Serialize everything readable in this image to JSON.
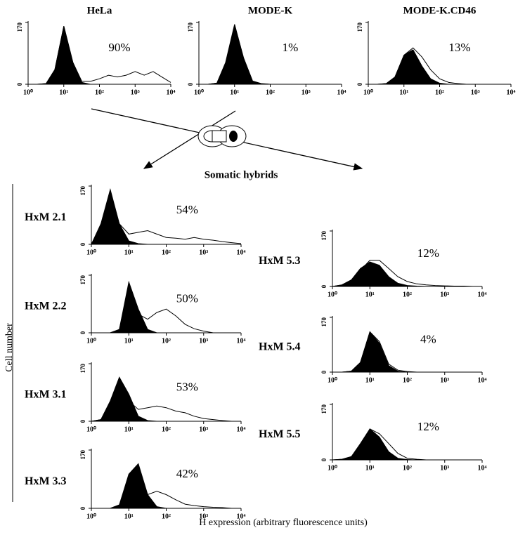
{
  "figure": {
    "center_label": "Somatic hybrids",
    "y_label": "Cell number",
    "x_label": "H expression (arbitrary fluorescence units)"
  },
  "chart_data": [
    {
      "type": "area",
      "title": "HeLa",
      "annotation": "90%",
      "log_x": true,
      "x": [
        1,
        1.8,
        3.2,
        5.6,
        10,
        18,
        32,
        56,
        100,
        180,
        320,
        560,
        1000,
        1800,
        3200,
        5600,
        10000
      ],
      "xlim": [
        1,
        10000
      ],
      "xticks": [
        {
          "value": 1,
          "label": "10⁰"
        },
        {
          "value": 10,
          "label": "10¹"
        },
        {
          "value": 100,
          "label": "10²"
        },
        {
          "value": 1000,
          "label": "10³"
        },
        {
          "value": 10000,
          "label": "10⁴"
        }
      ],
      "ylim": [
        0,
        170
      ],
      "yticks": [
        0,
        170
      ],
      "series": [
        {
          "color": "#000000",
          "fill": true,
          "values": [
            0,
            0,
            2,
            40,
            160,
            60,
            5,
            0,
            0,
            0,
            0,
            0,
            0,
            0,
            0,
            0,
            0
          ]
        },
        {
          "color": "#000000",
          "fill": false,
          "values": [
            0,
            0,
            2,
            40,
            160,
            60,
            8,
            8,
            15,
            25,
            20,
            25,
            35,
            25,
            35,
            20,
            5
          ]
        }
      ]
    },
    {
      "type": "area",
      "title": "MODE-K",
      "annotation": "1%",
      "log_x": true,
      "x": [
        1,
        1.8,
        3.2,
        5.6,
        10,
        18,
        32,
        56,
        100,
        180,
        320,
        560,
        1000,
        1800,
        3200,
        5600,
        10000
      ],
      "xlim": [
        1,
        10000
      ],
      "xticks": [
        {
          "value": 1,
          "label": "10⁰"
        },
        {
          "value": 10,
          "label": "10¹"
        },
        {
          "value": 100,
          "label": "10²"
        },
        {
          "value": 1000,
          "label": "10³"
        },
        {
          "value": 10000,
          "label": "10⁴"
        }
      ],
      "ylim": [
        0,
        170
      ],
      "yticks": [
        0,
        170
      ],
      "series": [
        {
          "color": "#000000",
          "fill": true,
          "values": [
            0,
            0,
            3,
            60,
            165,
            70,
            8,
            1,
            0,
            0,
            0,
            0,
            0,
            0,
            0,
            0,
            0
          ]
        },
        {
          "color": "#000000",
          "fill": false,
          "values": [
            0,
            0,
            3,
            58,
            163,
            72,
            9,
            2,
            0,
            0,
            0,
            0,
            0,
            0,
            0,
            0,
            0
          ]
        }
      ]
    },
    {
      "type": "area",
      "title": "MODE-K.CD46",
      "annotation": "13%",
      "log_x": true,
      "x": [
        1,
        1.8,
        3.2,
        5.6,
        10,
        18,
        32,
        56,
        100,
        180,
        320,
        560,
        1000,
        1800,
        3200,
        5600,
        10000
      ],
      "xlim": [
        1,
        10000
      ],
      "xticks": [
        {
          "value": 1,
          "label": "10⁰"
        },
        {
          "value": 10,
          "label": "10¹"
        },
        {
          "value": 100,
          "label": "10²"
        },
        {
          "value": 1000,
          "label": "10³"
        },
        {
          "value": 10000,
          "label": "10⁴"
        }
      ],
      "ylim": [
        0,
        170
      ],
      "yticks": [
        0,
        170
      ],
      "series": [
        {
          "color": "#000000",
          "fill": true,
          "values": [
            0,
            0,
            2,
            20,
            80,
            95,
            50,
            15,
            3,
            0,
            0,
            0,
            0,
            0,
            0,
            0,
            0
          ]
        },
        {
          "color": "#000000",
          "fill": false,
          "values": [
            0,
            0,
            2,
            20,
            80,
            100,
            75,
            40,
            15,
            5,
            2,
            0,
            0,
            0,
            0,
            0,
            0
          ]
        }
      ]
    },
    {
      "type": "area",
      "title": "HxM 2.1",
      "annotation": "54%",
      "log_x": true,
      "x": [
        1,
        1.8,
        3.2,
        5.6,
        10,
        18,
        32,
        56,
        100,
        180,
        320,
        560,
        1000,
        1800,
        3200,
        5600,
        10000
      ],
      "xlim": [
        1,
        10000
      ],
      "xticks": [
        {
          "value": 1,
          "label": "10⁰"
        },
        {
          "value": 10,
          "label": "10¹"
        },
        {
          "value": 100,
          "label": "10²"
        },
        {
          "value": 1000,
          "label": "10³"
        },
        {
          "value": 10000,
          "label": "10⁴"
        }
      ],
      "ylim": [
        0,
        170
      ],
      "yticks": [
        0,
        170
      ],
      "series": [
        {
          "color": "#000000",
          "fill": true,
          "values": [
            0,
            60,
            160,
            60,
            10,
            2,
            0,
            0,
            0,
            0,
            0,
            0,
            0,
            0,
            0,
            0,
            0
          ]
        },
        {
          "color": "#000000",
          "fill": false,
          "values": [
            0,
            55,
            150,
            60,
            30,
            35,
            40,
            30,
            20,
            18,
            15,
            20,
            15,
            12,
            8,
            5,
            2
          ]
        }
      ]
    },
    {
      "type": "area",
      "title": "HxM 2.2",
      "annotation": "50%",
      "log_x": true,
      "x": [
        1,
        1.8,
        3.2,
        5.6,
        10,
        18,
        32,
        56,
        100,
        180,
        320,
        560,
        1000,
        1800,
        3200,
        5600,
        10000
      ],
      "xlim": [
        1,
        10000
      ],
      "xticks": [
        {
          "value": 1,
          "label": "10⁰"
        },
        {
          "value": 10,
          "label": "10¹"
        },
        {
          "value": 100,
          "label": "10²"
        },
        {
          "value": 1000,
          "label": "10³"
        },
        {
          "value": 10000,
          "label": "10⁴"
        }
      ],
      "ylim": [
        0,
        170
      ],
      "yticks": [
        0,
        170
      ],
      "series": [
        {
          "color": "#000000",
          "fill": true,
          "values": [
            0,
            0,
            0,
            10,
            150,
            70,
            10,
            0,
            0,
            0,
            0,
            0,
            0,
            0,
            0,
            0,
            0
          ]
        },
        {
          "color": "#000000",
          "fill": false,
          "values": [
            0,
            0,
            0,
            10,
            140,
            55,
            40,
            60,
            70,
            50,
            25,
            12,
            5,
            0,
            0,
            0,
            0
          ]
        }
      ]
    },
    {
      "type": "area",
      "title": "HxM 3.1",
      "annotation": "53%",
      "log_x": true,
      "x": [
        1,
        1.8,
        3.2,
        5.6,
        10,
        18,
        32,
        56,
        100,
        180,
        320,
        560,
        1000,
        1800,
        3200,
        5600,
        10000
      ],
      "xlim": [
        1,
        10000
      ],
      "xticks": [
        {
          "value": 1,
          "label": "10⁰"
        },
        {
          "value": 10,
          "label": "10¹"
        },
        {
          "value": 100,
          "label": "10²"
        },
        {
          "value": 1000,
          "label": "10³"
        },
        {
          "value": 10000,
          "label": "10⁴"
        }
      ],
      "ylim": [
        0,
        170
      ],
      "yticks": [
        0,
        170
      ],
      "series": [
        {
          "color": "#000000",
          "fill": true,
          "values": [
            0,
            5,
            60,
            130,
            80,
            15,
            2,
            0,
            0,
            0,
            0,
            0,
            0,
            0,
            0,
            0,
            0
          ]
        },
        {
          "color": "#000000",
          "fill": false,
          "values": [
            0,
            5,
            55,
            110,
            60,
            35,
            40,
            45,
            40,
            30,
            25,
            15,
            8,
            5,
            2,
            0,
            0
          ]
        }
      ]
    },
    {
      "type": "area",
      "title": "HxM 3.3",
      "annotation": "42%",
      "log_x": true,
      "x": [
        1,
        1.8,
        3.2,
        5.6,
        10,
        18,
        32,
        56,
        100,
        180,
        320,
        560,
        1000,
        1800,
        3200,
        5600,
        10000
      ],
      "xlim": [
        1,
        10000
      ],
      "xticks": [
        {
          "value": 1,
          "label": "10⁰"
        },
        {
          "value": 10,
          "label": "10¹"
        },
        {
          "value": 100,
          "label": "10²"
        },
        {
          "value": 1000,
          "label": "10³"
        },
        {
          "value": 10000,
          "label": "10⁴"
        }
      ],
      "ylim": [
        0,
        170
      ],
      "yticks": [
        0,
        170
      ],
      "series": [
        {
          "color": "#000000",
          "fill": true,
          "values": [
            0,
            0,
            0,
            10,
            100,
            130,
            40,
            5,
            0,
            0,
            0,
            0,
            0,
            0,
            0,
            0,
            0
          ]
        },
        {
          "color": "#000000",
          "fill": false,
          "values": [
            0,
            0,
            0,
            10,
            95,
            120,
            40,
            50,
            40,
            25,
            12,
            8,
            5,
            3,
            2,
            0,
            0
          ]
        }
      ]
    },
    {
      "type": "area",
      "title": "HxM 5.3",
      "annotation": "12%",
      "log_x": true,
      "x": [
        1,
        1.8,
        3.2,
        5.6,
        10,
        18,
        32,
        56,
        100,
        180,
        320,
        560,
        1000,
        1800,
        3200,
        5600,
        10000
      ],
      "xlim": [
        1,
        10000
      ],
      "xticks": [
        {
          "value": 1,
          "label": "10⁰"
        },
        {
          "value": 10,
          "label": "10¹"
        },
        {
          "value": 100,
          "label": "10²"
        },
        {
          "value": 1000,
          "label": "10³"
        },
        {
          "value": 10000,
          "label": "10⁴"
        }
      ],
      "ylim": [
        0,
        170
      ],
      "yticks": [
        0,
        170
      ],
      "series": [
        {
          "color": "#000000",
          "fill": true,
          "values": [
            0,
            5,
            20,
            55,
            75,
            65,
            30,
            10,
            3,
            1,
            0,
            0,
            0,
            0,
            0,
            0,
            0
          ]
        },
        {
          "color": "#000000",
          "fill": false,
          "values": [
            0,
            5,
            20,
            50,
            80,
            80,
            55,
            30,
            15,
            8,
            5,
            3,
            2,
            1,
            1,
            0,
            0
          ]
        }
      ]
    },
    {
      "type": "area",
      "title": "HxM 5.4",
      "annotation": "4%",
      "log_x": true,
      "x": [
        1,
        1.8,
        3.2,
        5.6,
        10,
        18,
        32,
        56,
        100,
        180,
        320,
        560,
        1000,
        1800,
        3200,
        5600,
        10000
      ],
      "xlim": [
        1,
        10000
      ],
      "xticks": [
        {
          "value": 1,
          "label": "10⁰"
        },
        {
          "value": 10,
          "label": "10¹"
        },
        {
          "value": 100,
          "label": "10²"
        },
        {
          "value": 1000,
          "label": "10³"
        },
        {
          "value": 10000,
          "label": "10⁴"
        }
      ],
      "ylim": [
        0,
        170
      ],
      "yticks": [
        0,
        170
      ],
      "series": [
        {
          "color": "#000000",
          "fill": true,
          "values": [
            0,
            0,
            3,
            30,
            125,
            90,
            20,
            3,
            0,
            0,
            0,
            0,
            0,
            0,
            0,
            0,
            0
          ]
        },
        {
          "color": "#000000",
          "fill": false,
          "values": [
            0,
            0,
            3,
            30,
            125,
            95,
            25,
            6,
            2,
            0,
            0,
            0,
            0,
            0,
            0,
            0,
            0
          ]
        }
      ]
    },
    {
      "type": "area",
      "title": "HxM 5.5",
      "annotation": "12%",
      "log_x": true,
      "x": [
        1,
        1.8,
        3.2,
        5.6,
        10,
        18,
        32,
        56,
        100,
        180,
        320,
        560,
        1000,
        1800,
        3200,
        5600,
        10000
      ],
      "xlim": [
        1,
        10000
      ],
      "xticks": [
        {
          "value": 1,
          "label": "10⁰"
        },
        {
          "value": 10,
          "label": "10¹"
        },
        {
          "value": 100,
          "label": "10²"
        },
        {
          "value": 1000,
          "label": "10³"
        },
        {
          "value": 10000,
          "label": "10⁴"
        }
      ],
      "ylim": [
        0,
        170
      ],
      "yticks": [
        0,
        170
      ],
      "series": [
        {
          "color": "#000000",
          "fill": true,
          "values": [
            0,
            2,
            10,
            50,
            95,
            70,
            25,
            5,
            1,
            0,
            0,
            0,
            0,
            0,
            0,
            0,
            0
          ]
        },
        {
          "color": "#000000",
          "fill": false,
          "values": [
            0,
            2,
            10,
            45,
            95,
            80,
            50,
            20,
            5,
            2,
            0,
            0,
            0,
            0,
            0,
            0,
            0
          ]
        }
      ]
    }
  ]
}
